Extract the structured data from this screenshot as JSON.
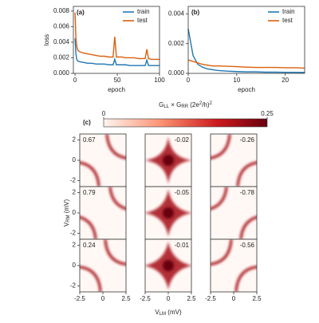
{
  "chart_data": [
    {
      "type": "line",
      "label": "(a)",
      "xlabel": "epoch",
      "ylabel": "loss",
      "legend": "upper right",
      "x": [
        0,
        1,
        2,
        3,
        5,
        10,
        15,
        20,
        25,
        30,
        35,
        40,
        45,
        47,
        49,
        55,
        60,
        65,
        70,
        75,
        80,
        83,
        85,
        87,
        90,
        95,
        100
      ],
      "series": [
        {
          "name": "train",
          "color": "#1f77b4",
          "values": [
            0.0045,
            0.0025,
            0.0018,
            0.0016,
            0.0015,
            0.0014,
            0.0013,
            0.0013,
            0.0012,
            0.0012,
            0.0012,
            0.0011,
            0.0011,
            0.0018,
            0.0011,
            0.0011,
            0.0011,
            0.001,
            0.001,
            0.001,
            0.001,
            0.001,
            0.0017,
            0.001,
            0.001,
            0.001,
            0.001
          ]
        },
        {
          "name": "test",
          "color": "#d9600f",
          "values": [
            0.0078,
            0.0045,
            0.0035,
            0.003,
            0.0028,
            0.0026,
            0.0025,
            0.0024,
            0.0023,
            0.0022,
            0.0022,
            0.0021,
            0.0021,
            0.0047,
            0.0021,
            0.0021,
            0.002,
            0.002,
            0.002,
            0.0019,
            0.0019,
            0.0019,
            0.0031,
            0.0019,
            0.0018,
            0.0018,
            0.0018
          ]
        }
      ],
      "xlim": [
        -2,
        100
      ],
      "xticks": [
        0,
        50,
        100
      ],
      "ylim": [
        0,
        0.0086
      ],
      "yticks": [
        {
          "value": 0,
          "label": "0.000"
        },
        0.002,
        0.004,
        0.006,
        0.008
      ]
    },
    {
      "type": "line",
      "label": "(b)",
      "xlabel": "epoch",
      "legend": "upper right",
      "x": [
        0,
        1,
        2,
        3,
        4,
        5,
        6,
        8,
        10,
        12,
        14,
        16,
        18,
        20,
        22,
        24
      ],
      "series": [
        {
          "name": "train",
          "color": "#1f77b4",
          "values": [
            0.003,
            0.0012,
            0.0006,
            0.0004,
            0.0003,
            0.00025,
            0.0002,
            0.00015,
            0.00012,
            0.0001,
            0.0001,
            8e-05,
            8e-05,
            7e-05,
            7e-05,
            6e-05
          ]
        },
        {
          "name": "test",
          "color": "#d9600f",
          "values": [
            0.0009,
            0.0008,
            0.0007,
            0.0006,
            0.00055,
            0.0005,
            0.0005,
            0.00048,
            0.00045,
            0.00042,
            0.0004,
            0.0004,
            0.0004,
            0.00038,
            0.00038,
            0.00035
          ]
        }
      ],
      "xlim": [
        0,
        24
      ],
      "xticks": [
        0,
        10,
        20
      ],
      "ylim": [
        0,
        0.0045
      ],
      "yticks": [
        {
          "value": 0,
          "label": "0.000"
        },
        0.002,
        0.004
      ]
    },
    {
      "type": "heatmap",
      "label": "(c)",
      "colorbar_label": [
        "G",
        "LL",
        " × G",
        "RR",
        " (2e",
        "2",
        "/h)",
        "2"
      ],
      "clim": [
        0,
        0.25
      ],
      "cticks": [
        0,
        0.25
      ],
      "xlabel": [
        "V",
        "LM",
        " (mV)"
      ],
      "ylabel": [
        "V",
        "RM",
        " (mV)"
      ],
      "xlim": [
        -2.5,
        2.5
      ],
      "xticks": [
        -2.5,
        0,
        2.5
      ],
      "ylim": [
        -2.6,
        2.6
      ],
      "yticks": [
        -2,
        0,
        2
      ],
      "values": [
        [
          0.67,
          -0.02,
          -0.26
        ],
        [
          0.79,
          -0.05,
          -0.78
        ],
        [
          0.24,
          -0.01,
          -0.56
        ]
      ]
    }
  ]
}
